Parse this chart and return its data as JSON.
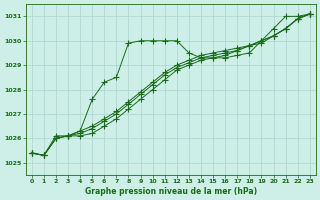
{
  "title": "Graphe pression niveau de la mer (hPa)",
  "background_color": "#ceeee8",
  "grid_color": "#aad5cc",
  "line_color": "#1a6b1a",
  "xlim": [
    -0.5,
    23.5
  ],
  "ylim": [
    1024.5,
    1031.5
  ],
  "yticks": [
    1025,
    1026,
    1027,
    1028,
    1029,
    1030,
    1031
  ],
  "xticks": [
    0,
    1,
    2,
    3,
    4,
    5,
    6,
    7,
    8,
    9,
    10,
    11,
    12,
    13,
    14,
    15,
    16,
    17,
    18,
    19,
    20,
    21,
    22,
    23
  ],
  "series": [
    {
      "x": [
        0,
        1,
        2,
        3,
        4,
        5,
        6,
        7,
        8,
        9,
        10,
        11,
        12,
        13,
        14,
        15,
        16,
        17,
        18,
        19,
        20,
        21,
        22,
        23
      ],
      "y": [
        1025.4,
        1025.3,
        1026.1,
        1026.1,
        1026.3,
        1027.6,
        1028.3,
        1028.5,
        1029.9,
        1030.0,
        1030.0,
        1030.0,
        1030.0,
        1029.5,
        1029.3,
        1029.3,
        1029.3,
        1029.4,
        1029.5,
        1030.0,
        1030.5,
        1031.0,
        1031.0,
        1031.1
      ]
    },
    {
      "x": [
        0,
        1,
        2,
        3,
        4,
        5,
        6,
        7,
        8,
        9,
        10,
        11,
        12,
        13,
        14,
        15,
        16,
        17,
        18,
        19,
        20,
        21,
        22,
        23
      ],
      "y": [
        1025.4,
        1025.3,
        1026.0,
        1026.1,
        1026.3,
        1026.5,
        1026.8,
        1027.1,
        1027.5,
        1027.9,
        1028.3,
        1028.7,
        1029.0,
        1029.2,
        1029.4,
        1029.5,
        1029.6,
        1029.7,
        1029.8,
        1029.9,
        1030.2,
        1030.5,
        1030.9,
        1031.1
      ]
    },
    {
      "x": [
        0,
        1,
        2,
        3,
        4,
        5,
        6,
        7,
        8,
        9,
        10,
        11,
        12,
        13,
        14,
        15,
        16,
        17,
        18,
        19,
        20,
        21,
        22,
        23
      ],
      "y": [
        1025.4,
        1025.3,
        1026.0,
        1026.1,
        1026.2,
        1026.4,
        1026.7,
        1027.0,
        1027.4,
        1027.8,
        1028.2,
        1028.6,
        1028.9,
        1029.1,
        1029.3,
        1029.4,
        1029.5,
        1029.6,
        1029.8,
        1030.0,
        1030.2,
        1030.5,
        1030.9,
        1031.1
      ]
    },
    {
      "x": [
        0,
        1,
        2,
        3,
        4,
        5,
        6,
        7,
        8,
        9,
        10,
        11,
        12,
        13,
        14,
        15,
        16,
        17,
        18,
        19,
        20,
        21,
        22,
        23
      ],
      "y": [
        1025.4,
        1025.3,
        1026.0,
        1026.1,
        1026.1,
        1026.2,
        1026.5,
        1026.8,
        1027.2,
        1027.6,
        1028.0,
        1028.4,
        1028.8,
        1029.0,
        1029.2,
        1029.3,
        1029.4,
        1029.6,
        1029.8,
        1030.0,
        1030.2,
        1030.5,
        1030.9,
        1031.1
      ]
    }
  ]
}
